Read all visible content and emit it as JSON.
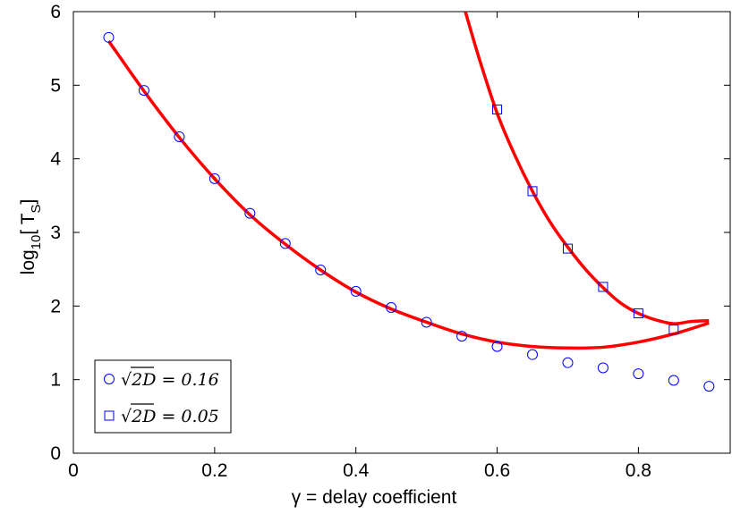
{
  "chart_data": {
    "type": "scatter",
    "xlabel": "γ = delay coefficient",
    "ylabel_main": "log",
    "ylabel_sub": "10",
    "ylabel_bracket_open": "[ T",
    "ylabel_bracket_sub": "S",
    "ylabel_bracket_close": "]",
    "xlim": [
      0,
      0.93
    ],
    "ylim": [
      0,
      6
    ],
    "xticks": [
      "0",
      "0.2",
      "0.4",
      "0.6",
      "0.8"
    ],
    "xtick_values": [
      0,
      0.2,
      0.4,
      0.6,
      0.8
    ],
    "yticks": [
      "0",
      "1",
      "2",
      "3",
      "4",
      "5",
      "6"
    ],
    "ytick_values": [
      0,
      1,
      2,
      3,
      4,
      5,
      6
    ],
    "grid": false,
    "legend_position": "bottom-left",
    "series": [
      {
        "name": "√2D = 0.16",
        "legend_prefix": "√",
        "legend_overline": "2D",
        "legend_suffix": " = 0.16",
        "marker": "circle",
        "color": "#0000ff",
        "points": [
          [
            0.05,
            5.65
          ],
          [
            0.1,
            4.93
          ],
          [
            0.15,
            4.3
          ],
          [
            0.2,
            3.73
          ],
          [
            0.25,
            3.26
          ],
          [
            0.3,
            2.85
          ],
          [
            0.35,
            2.49
          ],
          [
            0.4,
            2.2
          ],
          [
            0.45,
            1.98
          ],
          [
            0.5,
            1.78
          ],
          [
            0.55,
            1.59
          ],
          [
            0.6,
            1.45
          ],
          [
            0.65,
            1.34
          ],
          [
            0.7,
            1.23
          ],
          [
            0.75,
            1.16
          ],
          [
            0.8,
            1.08
          ],
          [
            0.85,
            0.99
          ],
          [
            0.9,
            0.91
          ]
        ],
        "fit_color": "#ff0000",
        "fit": [
          [
            0.05,
            5.6
          ],
          [
            0.1,
            4.92
          ],
          [
            0.15,
            4.29
          ],
          [
            0.2,
            3.73
          ],
          [
            0.25,
            3.24
          ],
          [
            0.3,
            2.84
          ],
          [
            0.35,
            2.49
          ],
          [
            0.4,
            2.19
          ],
          [
            0.45,
            1.96
          ],
          [
            0.5,
            1.78
          ],
          [
            0.55,
            1.62
          ],
          [
            0.6,
            1.51
          ],
          [
            0.65,
            1.45
          ],
          [
            0.7,
            1.43
          ],
          [
            0.75,
            1.44
          ],
          [
            0.8,
            1.51
          ],
          [
            0.85,
            1.62
          ],
          [
            0.9,
            1.77
          ]
        ]
      },
      {
        "name": "√2D = 0.05",
        "legend_prefix": "√",
        "legend_overline": "2D",
        "legend_suffix": " = 0.05",
        "marker": "square",
        "color": "#0000ff",
        "points": [
          [
            0.6,
            4.67
          ],
          [
            0.65,
            3.56
          ],
          [
            0.7,
            2.78
          ],
          [
            0.75,
            2.26
          ],
          [
            0.8,
            1.9
          ],
          [
            0.85,
            1.68
          ]
        ],
        "fit_color": "#ff0000",
        "fit": [
          [
            0.555,
            6.0
          ],
          [
            0.575,
            5.35
          ],
          [
            0.6,
            4.62
          ],
          [
            0.625,
            4.05
          ],
          [
            0.65,
            3.56
          ],
          [
            0.675,
            3.14
          ],
          [
            0.7,
            2.8
          ],
          [
            0.725,
            2.5
          ],
          [
            0.75,
            2.25
          ],
          [
            0.775,
            2.04
          ],
          [
            0.8,
            1.9
          ],
          [
            0.825,
            1.81
          ],
          [
            0.85,
            1.76
          ],
          [
            0.875,
            1.79
          ],
          [
            0.9,
            1.8
          ]
        ]
      }
    ]
  }
}
